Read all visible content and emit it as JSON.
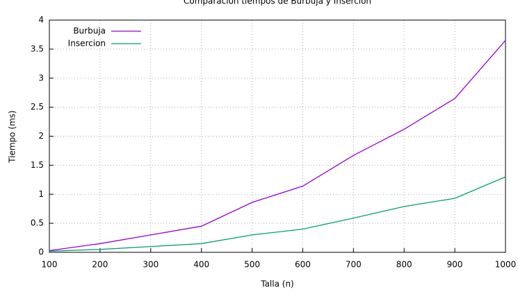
{
  "chart_data": {
    "type": "line",
    "title": "Comparacion tiempos de Burbuja y Insercion",
    "x_label": "Talla (n)",
    "y_label": "Tiempo (ms)",
    "x": [
      100,
      200,
      300,
      400,
      500,
      600,
      700,
      800,
      900,
      1000
    ],
    "series": [
      {
        "name": "Burbuja",
        "color": "#9400d3",
        "values": [
          0.03,
          0.15,
          0.3,
          0.45,
          0.86,
          1.14,
          1.67,
          2.12,
          2.65,
          3.65
        ]
      },
      {
        "name": "Insercion",
        "color": "#009e73",
        "values": [
          0.02,
          0.05,
          0.1,
          0.15,
          0.3,
          0.4,
          0.59,
          0.79,
          0.93,
          1.3
        ]
      }
    ],
    "xlim": [
      100,
      1000
    ],
    "xticks": [
      100,
      200,
      300,
      400,
      500,
      600,
      700,
      800,
      900,
      1000
    ],
    "ylim": [
      0,
      4
    ],
    "yticks": [
      0,
      0.5,
      1,
      1.5,
      2,
      2.5,
      3,
      3.5,
      4
    ],
    "grid": true,
    "legend": "top-left"
  }
}
